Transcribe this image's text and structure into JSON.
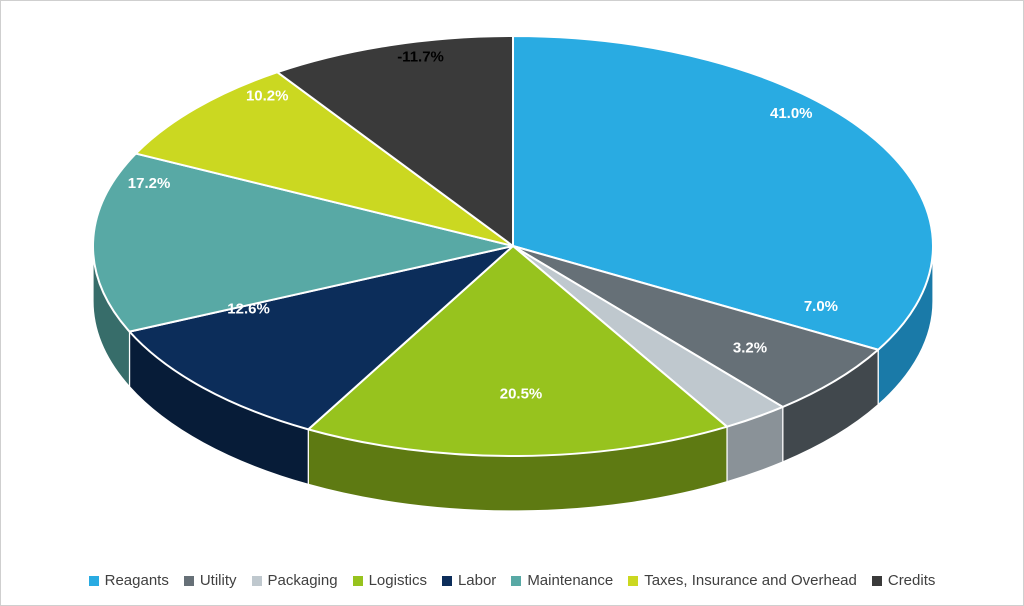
{
  "chart": {
    "background": "#FFFFFF",
    "border_color": "#CFCFCF",
    "legend_position": "bottom"
  },
  "chart_data": {
    "type": "pie",
    "style": "3d",
    "title": "",
    "legend_position": "bottom",
    "slices": [
      {
        "label": "Reagants",
        "value": 41.0,
        "display": "41.0%",
        "color": "#29ABE2",
        "side_color": "#1A7AA8",
        "label_color": "#FFFFFF"
      },
      {
        "label": "Utility",
        "value": 7.0,
        "display": "7.0%",
        "color": "#667077",
        "side_color": "#41484D",
        "label_color": "#FFFFFF"
      },
      {
        "label": "Packaging",
        "value": 3.2,
        "display": "3.2%",
        "color": "#BFC8CE",
        "side_color": "#8A9298",
        "label_color": "#FFFFFF"
      },
      {
        "label": "Logistics",
        "value": 20.5,
        "display": "20.5%",
        "color": "#97C31E",
        "side_color": "#5E7A12",
        "label_color": "#FFFFFF"
      },
      {
        "label": "Labor",
        "value": 12.6,
        "display": "12.6%",
        "color": "#0C2D5A",
        "side_color": "#071C38",
        "label_color": "#FFFFFF"
      },
      {
        "label": "Maintenance",
        "value": 17.2,
        "display": "17.2%",
        "color": "#58A9A5",
        "side_color": "#376D6A",
        "label_color": "#FFFFFF"
      },
      {
        "label": "Taxes, Insurance and Overhead",
        "value": 10.2,
        "display": "10.2%",
        "color": "#CBD821",
        "side_color": "#8C9414",
        "label_color": "#FFFFFF"
      },
      {
        "label": "Credits",
        "value": -11.7,
        "display": "-11.7%",
        "color": "#3A3A3A",
        "side_color": "#222222",
        "label_color": "#000000"
      }
    ]
  }
}
